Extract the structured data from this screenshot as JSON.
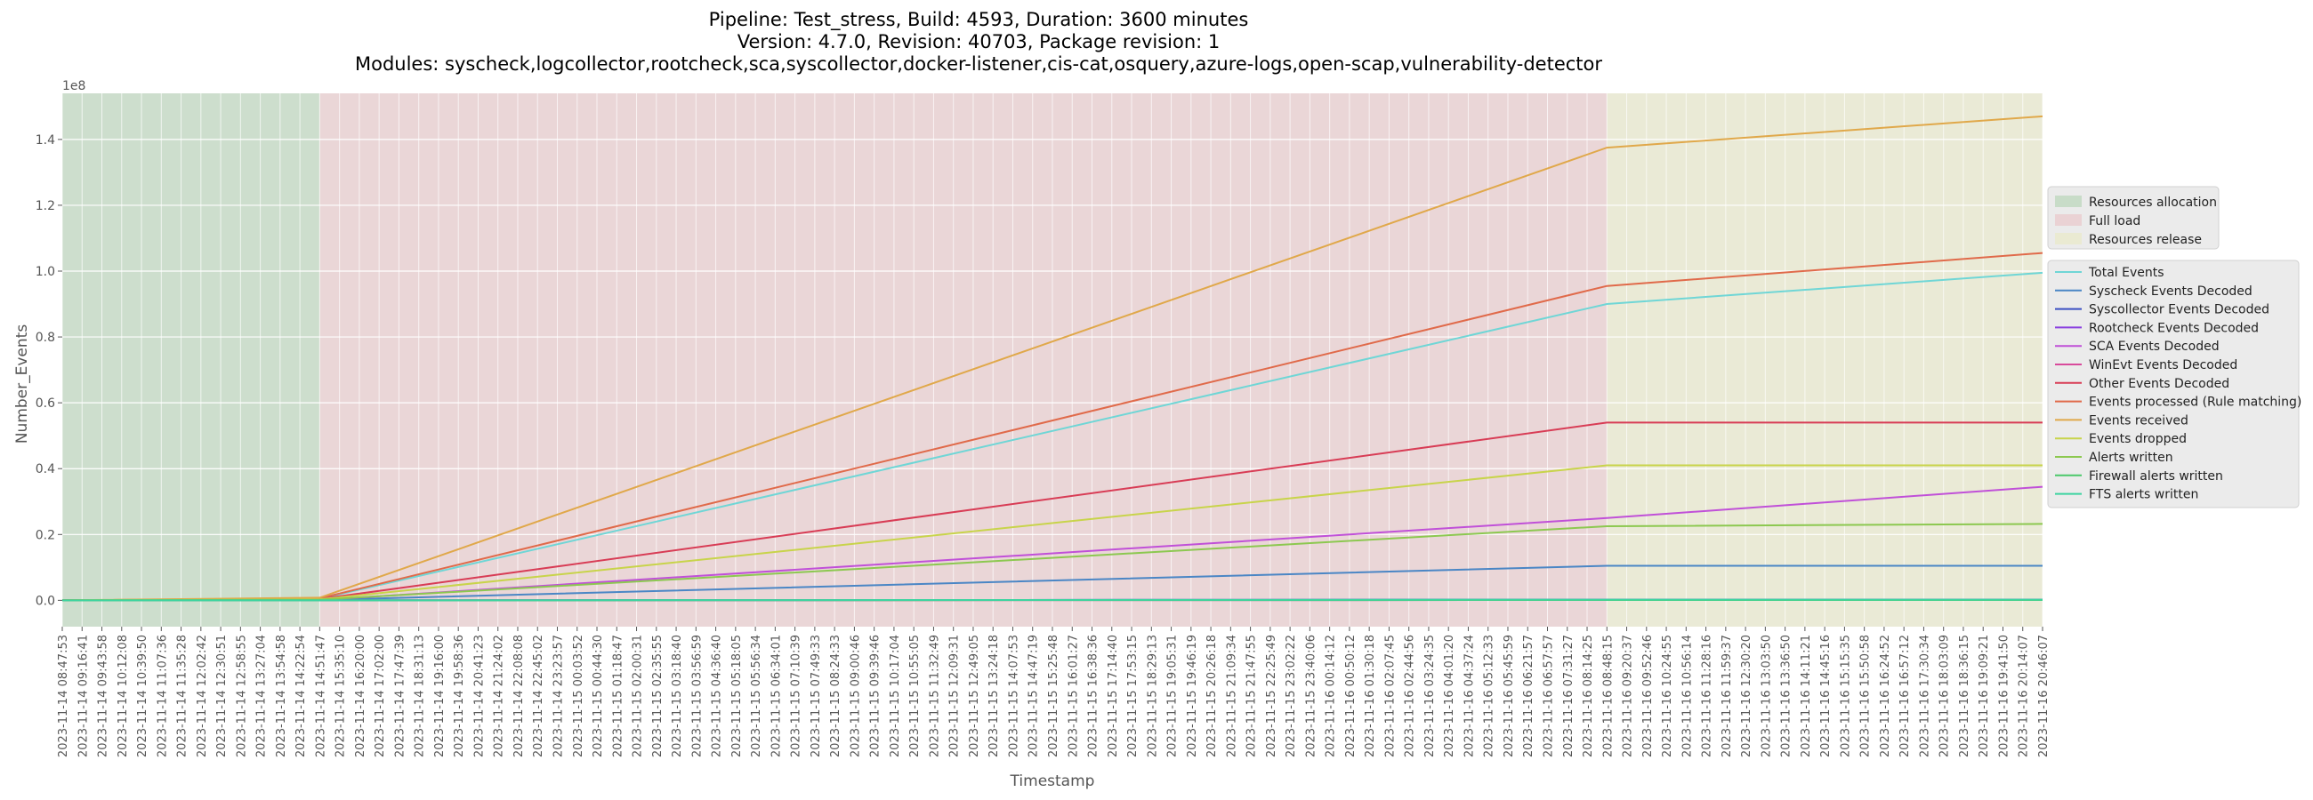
{
  "chart_data": {
    "type": "line",
    "title_lines": [
      "Pipeline: Test_stress, Build: 4593, Duration: 3600 minutes",
      "Version: 4.7.0, Revision: 40703, Package revision: 1",
      "Modules: syscheck,logcollector,rootcheck,sca,syscollector,docker-listener,cis-cat,osquery,azure-logs,open-scap,vulnerability-detector"
    ],
    "xlabel": "Timestamp",
    "ylabel": "Number_Events",
    "y_scale_note": "1e8",
    "ylim": [
      -0.08,
      1.54
    ],
    "y_ticks": [
      0.0,
      0.2,
      0.4,
      0.6,
      0.8,
      1.0,
      1.2,
      1.4
    ],
    "y_tick_labels": [
      "0.0",
      "0.2",
      "0.4",
      "0.6",
      "0.8",
      "1.0",
      "1.2",
      "1.4"
    ],
    "x_tick_labels": [
      "2023-11-14 08:47:53",
      "2023-11-14 09:16:41",
      "2023-11-14 09:43:58",
      "2023-11-14 10:12:08",
      "2023-11-14 10:39:50",
      "2023-11-14 11:07:36",
      "2023-11-14 11:35:28",
      "2023-11-14 12:02:42",
      "2023-11-14 12:30:51",
      "2023-11-14 12:58:55",
      "2023-11-14 13:27:04",
      "2023-11-14 13:54:58",
      "2023-11-14 14:22:54",
      "2023-11-14 14:51:47",
      "2023-11-14 15:35:10",
      "2023-11-14 16:20:00",
      "2023-11-14 17:02:00",
      "2023-11-14 17:47:39",
      "2023-11-14 18:31:13",
      "2023-11-14 19:16:00",
      "2023-11-14 19:58:36",
      "2023-11-14 20:41:23",
      "2023-11-14 21:24:02",
      "2023-11-14 22:08:08",
      "2023-11-14 22:45:02",
      "2023-11-14 23:23:57",
      "2023-11-15 00:03:52",
      "2023-11-15 00:44:30",
      "2023-11-15 01:18:47",
      "2023-11-15 02:00:31",
      "2023-11-15 02:35:55",
      "2023-11-15 03:18:40",
      "2023-11-15 03:56:59",
      "2023-11-15 04:36:40",
      "2023-11-15 05:18:05",
      "2023-11-15 05:56:34",
      "2023-11-15 06:34:01",
      "2023-11-15 07:10:39",
      "2023-11-15 07:49:33",
      "2023-11-15 08:24:33",
      "2023-11-15 09:00:46",
      "2023-11-15 09:39:46",
      "2023-11-15 10:17:04",
      "2023-11-15 10:55:05",
      "2023-11-15 11:32:49",
      "2023-11-15 12:09:31",
      "2023-11-15 12:49:05",
      "2023-11-15 13:24:18",
      "2023-11-15 14:07:53",
      "2023-11-15 14:47:19",
      "2023-11-15 15:25:48",
      "2023-11-15 16:01:27",
      "2023-11-15 16:38:36",
      "2023-11-15 17:14:40",
      "2023-11-15 17:53:15",
      "2023-11-15 18:29:13",
      "2023-11-15 19:05:31",
      "2023-11-15 19:46:19",
      "2023-11-15 20:26:18",
      "2023-11-15 21:09:34",
      "2023-11-15 21:47:55",
      "2023-11-15 22:25:49",
      "2023-11-15 23:02:22",
      "2023-11-15 23:40:06",
      "2023-11-16 00:14:12",
      "2023-11-16 00:50:12",
      "2023-11-16 01:30:18",
      "2023-11-16 02:07:45",
      "2023-11-16 02:44:56",
      "2023-11-16 03:24:35",
      "2023-11-16 04:01:20",
      "2023-11-16 04:37:24",
      "2023-11-16 05:12:33",
      "2023-11-16 05:45:59",
      "2023-11-16 06:21:57",
      "2023-11-16 06:57:57",
      "2023-11-16 07:31:27",
      "2023-11-16 08:14:25",
      "2023-11-16 08:48:15",
      "2023-11-16 09:20:37",
      "2023-11-16 09:52:46",
      "2023-11-16 10:24:55",
      "2023-11-16 10:56:14",
      "2023-11-16 11:28:16",
      "2023-11-16 11:59:37",
      "2023-11-16 12:30:20",
      "2023-11-16 13:03:50",
      "2023-11-16 13:36:50",
      "2023-11-16 14:11:21",
      "2023-11-16 14:45:16",
      "2023-11-16 15:15:35",
      "2023-11-16 15:50:58",
      "2023-11-16 16:24:52",
      "2023-11-16 16:57:12",
      "2023-11-16 17:30:34",
      "2023-11-16 18:03:09",
      "2023-11-16 18:36:15",
      "2023-11-16 19:09:21",
      "2023-11-16 19:41:50",
      "2023-11-16 20:14:07",
      "2023-11-16 20:46:07"
    ],
    "phases": [
      {
        "name": "Resources allocation",
        "start": "2023-11-14 08:47:53",
        "end": "2023-11-14 14:51:47",
        "color": "#c8dcc8"
      },
      {
        "name": "Full load",
        "start": "2023-11-14 14:51:47",
        "end": "2023-11-16 08:48:15",
        "color": "#ead2d4"
      },
      {
        "name": "Resources release",
        "start": "2023-11-16 08:48:15",
        "end": "2023-11-16 20:46:07",
        "color": "#eaead2"
      }
    ],
    "series": [
      {
        "name": "Total Events",
        "color": "#6fd6d6",
        "values": [
          0,
          0.005,
          0.9,
          0.995
        ]
      },
      {
        "name": "Syscheck Events Decoded",
        "color": "#4a86c5",
        "values": [
          0,
          0.001,
          0.105,
          0.105
        ]
      },
      {
        "name": "Syscollector Events Decoded",
        "color": "#3b4fc2",
        "values": [
          0,
          0,
          0.002,
          0.002
        ]
      },
      {
        "name": "Rootcheck Events Decoded",
        "color": "#8a3fe0",
        "values": [
          0,
          0,
          0.002,
          0.002
        ]
      },
      {
        "name": "SCA Events Decoded",
        "color": "#c050d8",
        "values": [
          0,
          0.001,
          0.25,
          0.345
        ]
      },
      {
        "name": "WinEvt Events Decoded",
        "color": "#d84a9c",
        "values": [
          0,
          0,
          0.001,
          0.001
        ]
      },
      {
        "name": "Other Events Decoded",
        "color": "#d83c55",
        "values": [
          0,
          0.004,
          0.54,
          0.54
        ]
      },
      {
        "name": "Events processed (Rule matching)",
        "color": "#e06a4a",
        "values": [
          0,
          0.006,
          0.955,
          1.055
        ]
      },
      {
        "name": "Events received",
        "color": "#e0a84a",
        "values": [
          0,
          0.008,
          1.375,
          1.47
        ]
      },
      {
        "name": "Events dropped",
        "color": "#c8d44a",
        "values": [
          0,
          0.003,
          0.41,
          0.41
        ]
      },
      {
        "name": "Alerts written",
        "color": "#8cc850",
        "values": [
          0,
          0.002,
          0.225,
          0.232
        ]
      },
      {
        "name": "Firewall alerts written",
        "color": "#4ac86a",
        "values": [
          0,
          0,
          0.001,
          0.001
        ]
      },
      {
        "name": "FTS alerts written",
        "color": "#3cd4a0",
        "values": [
          0,
          0,
          0.002,
          0.002
        ]
      }
    ],
    "series_x": [
      "2023-11-14 08:47:53",
      "2023-11-14 14:51:47",
      "2023-11-16 08:48:15",
      "2023-11-16 20:46:07"
    ],
    "grid": true,
    "legend_placement": "right"
  }
}
